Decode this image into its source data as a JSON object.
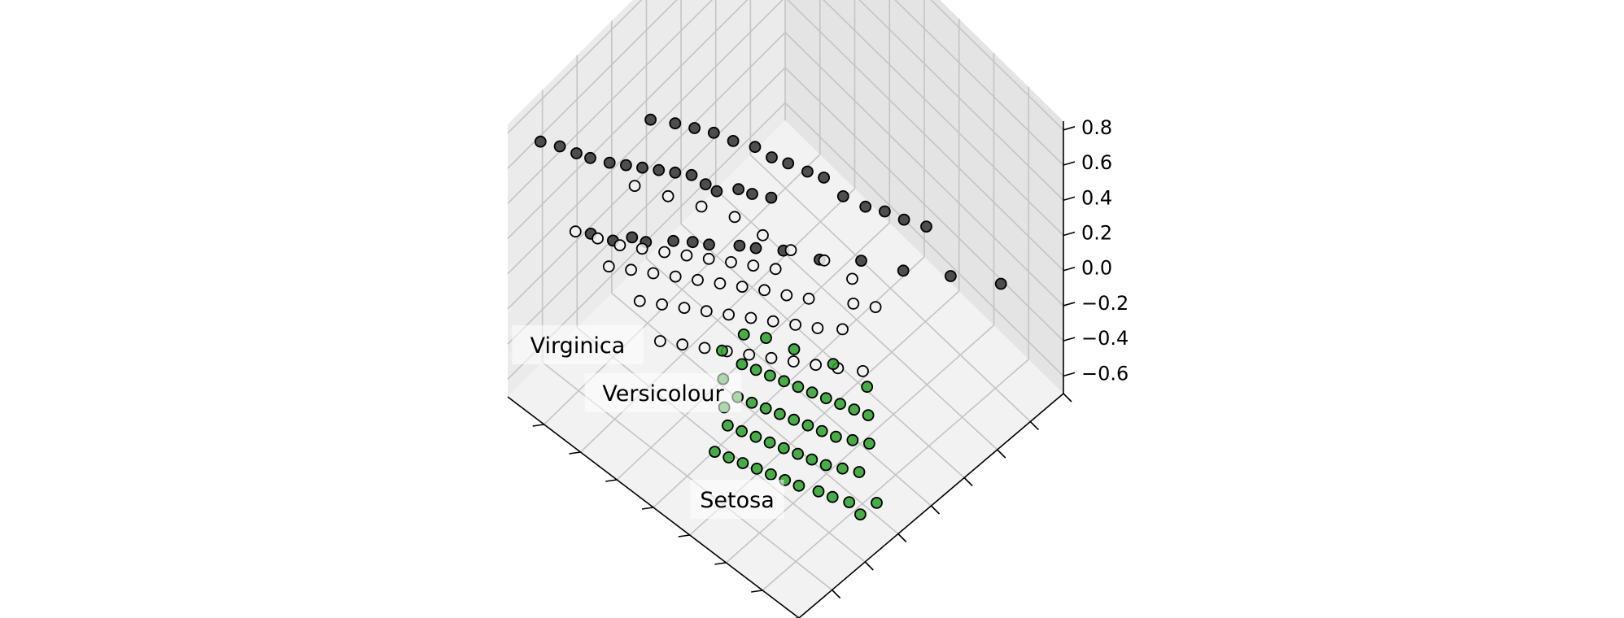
{
  "chart_data": {
    "type": "scatter",
    "projection": "3d",
    "title": "",
    "xlabel": "",
    "ylabel": "",
    "zlabel": "",
    "zlim": [
      -0.7,
      0.85
    ],
    "z_ticks": [
      "0.8",
      "0.6",
      "0.4",
      "0.2",
      "0.0",
      "−0.2",
      "−0.4",
      "−0.6"
    ],
    "x_ticklabels": "hidden",
    "y_ticklabels": "hidden",
    "grid": true,
    "class_labels": [
      "Virginica",
      "Versicolour",
      "Setosa"
    ],
    "series": [
      {
        "name": "Virginica",
        "color": "#333333",
        "points": [
          [
            0.16,
            0.94,
            -0.2
          ],
          [
            0.26,
            0.86,
            -0.18
          ],
          [
            0.35,
            0.78,
            -0.16
          ],
          [
            0.44,
            0.72,
            -0.14
          ],
          [
            0.51,
            0.64,
            -0.12
          ],
          [
            0.58,
            0.58,
            -0.08
          ],
          [
            0.62,
            0.52,
            -0.04
          ],
          [
            0.64,
            0.48,
            0.0
          ],
          [
            0.69,
            0.42,
            0.02
          ],
          [
            0.71,
            0.38,
            0.06
          ],
          [
            0.74,
            0.34,
            0.08
          ],
          [
            0.78,
            0.28,
            0.1
          ],
          [
            0.8,
            0.25,
            0.14
          ],
          [
            0.82,
            0.2,
            0.16
          ],
          [
            0.86,
            0.16,
            0.2
          ],
          [
            0.64,
            0.6,
            0.12
          ],
          [
            0.66,
            0.55,
            0.18
          ],
          [
            0.68,
            0.52,
            0.22
          ],
          [
            0.7,
            0.46,
            0.26
          ],
          [
            0.72,
            0.44,
            0.3
          ],
          [
            0.75,
            0.42,
            0.34
          ],
          [
            0.77,
            0.38,
            0.38
          ],
          [
            0.79,
            0.34,
            0.42
          ],
          [
            0.81,
            0.3,
            0.46
          ],
          [
            0.83,
            0.26,
            0.5
          ],
          [
            0.85,
            0.22,
            0.54
          ],
          [
            0.88,
            0.18,
            0.58
          ],
          [
            0.9,
            0.15,
            0.62
          ],
          [
            0.93,
            0.12,
            0.66
          ],
          [
            0.96,
            0.08,
            0.7
          ],
          [
            0.55,
            0.7,
            0.22
          ],
          [
            0.57,
            0.66,
            0.28
          ],
          [
            0.6,
            0.62,
            0.34
          ],
          [
            0.62,
            0.58,
            0.4
          ],
          [
            0.65,
            0.55,
            0.46
          ],
          [
            0.68,
            0.5,
            0.52
          ],
          [
            0.71,
            0.46,
            0.58
          ],
          [
            0.74,
            0.42,
            0.62
          ],
          [
            0.77,
            0.38,
            0.66
          ],
          [
            0.8,
            0.32,
            0.72
          ],
          [
            0.52,
            0.74,
            0.1
          ],
          [
            0.48,
            0.78,
            0.04
          ],
          [
            0.45,
            0.82,
            0.0
          ],
          [
            0.42,
            0.86,
            -0.06
          ],
          [
            0.38,
            0.9,
            -0.1
          ]
        ]
      },
      {
        "name": "Versicolour",
        "color": "#f2f2f2",
        "points": [
          [
            0.28,
            0.55,
            -0.35
          ],
          [
            0.32,
            0.5,
            -0.32
          ],
          [
            0.36,
            0.46,
            -0.3
          ],
          [
            0.4,
            0.42,
            -0.28
          ],
          [
            0.44,
            0.38,
            -0.26
          ],
          [
            0.48,
            0.34,
            -0.24
          ],
          [
            0.52,
            0.3,
            -0.22
          ],
          [
            0.56,
            0.26,
            -0.2
          ],
          [
            0.6,
            0.22,
            -0.18
          ],
          [
            0.64,
            0.18,
            -0.16
          ],
          [
            0.35,
            0.55,
            -0.2
          ],
          [
            0.39,
            0.5,
            -0.18
          ],
          [
            0.43,
            0.46,
            -0.16
          ],
          [
            0.47,
            0.42,
            -0.14
          ],
          [
            0.51,
            0.38,
            -0.12
          ],
          [
            0.55,
            0.34,
            -0.1
          ],
          [
            0.59,
            0.3,
            -0.08
          ],
          [
            0.63,
            0.26,
            -0.06
          ],
          [
            0.67,
            0.22,
            -0.04
          ],
          [
            0.71,
            0.18,
            -0.02
          ],
          [
            0.42,
            0.5,
            -0.05
          ],
          [
            0.46,
            0.46,
            -0.03
          ],
          [
            0.5,
            0.42,
            0.0
          ],
          [
            0.54,
            0.38,
            0.02
          ],
          [
            0.58,
            0.34,
            0.04
          ],
          [
            0.62,
            0.3,
            0.06
          ],
          [
            0.66,
            0.26,
            0.08
          ],
          [
            0.7,
            0.22,
            0.1
          ],
          [
            0.74,
            0.18,
            0.12
          ],
          [
            0.78,
            0.14,
            0.14
          ],
          [
            0.48,
            0.44,
            0.12
          ],
          [
            0.52,
            0.4,
            0.14
          ],
          [
            0.56,
            0.36,
            0.16
          ],
          [
            0.6,
            0.32,
            0.18
          ],
          [
            0.64,
            0.28,
            0.2
          ],
          [
            0.68,
            0.24,
            0.22
          ],
          [
            0.72,
            0.2,
            0.24
          ],
          [
            0.76,
            0.16,
            0.26
          ],
          [
            0.8,
            0.12,
            0.3
          ],
          [
            0.84,
            0.08,
            0.34
          ],
          [
            0.3,
            0.62,
            -0.1
          ],
          [
            0.34,
            0.58,
            -0.08
          ],
          [
            0.38,
            0.62,
            -0.04
          ],
          [
            0.44,
            0.58,
            0.04
          ],
          [
            0.5,
            0.52,
            0.1
          ],
          [
            0.56,
            0.48,
            0.16
          ],
          [
            0.62,
            0.44,
            0.24
          ],
          [
            0.68,
            0.38,
            0.3
          ],
          [
            0.74,
            0.32,
            0.36
          ],
          [
            0.8,
            0.26,
            0.42
          ]
        ]
      },
      {
        "name": "Setosa",
        "color": "#2ca02c",
        "points": [
          [
            0.1,
            0.3,
            -0.55
          ],
          [
            0.13,
            0.27,
            -0.52
          ],
          [
            0.16,
            0.25,
            -0.5
          ],
          [
            0.2,
            0.22,
            -0.48
          ],
          [
            0.23,
            0.2,
            -0.46
          ],
          [
            0.26,
            0.18,
            -0.44
          ],
          [
            0.29,
            0.16,
            -0.42
          ],
          [
            0.32,
            0.14,
            -0.4
          ],
          [
            0.35,
            0.12,
            -0.38
          ],
          [
            0.38,
            0.1,
            -0.36
          ],
          [
            0.12,
            0.36,
            -0.48
          ],
          [
            0.15,
            0.33,
            -0.46
          ],
          [
            0.18,
            0.3,
            -0.44
          ],
          [
            0.21,
            0.28,
            -0.42
          ],
          [
            0.24,
            0.26,
            -0.4
          ],
          [
            0.27,
            0.24,
            -0.38
          ],
          [
            0.3,
            0.22,
            -0.36
          ],
          [
            0.33,
            0.2,
            -0.34
          ],
          [
            0.36,
            0.18,
            -0.32
          ],
          [
            0.39,
            0.16,
            -0.3
          ],
          [
            0.14,
            0.42,
            -0.42
          ],
          [
            0.17,
            0.39,
            -0.4
          ],
          [
            0.2,
            0.36,
            -0.38
          ],
          [
            0.23,
            0.34,
            -0.36
          ],
          [
            0.26,
            0.32,
            -0.34
          ],
          [
            0.29,
            0.3,
            -0.32
          ],
          [
            0.32,
            0.28,
            -0.3
          ],
          [
            0.35,
            0.26,
            -0.28
          ],
          [
            0.38,
            0.24,
            -0.26
          ],
          [
            0.41,
            0.22,
            -0.24
          ],
          [
            0.18,
            0.46,
            -0.36
          ],
          [
            0.21,
            0.44,
            -0.34
          ],
          [
            0.24,
            0.42,
            -0.32
          ],
          [
            0.27,
            0.4,
            -0.3
          ],
          [
            0.3,
            0.38,
            -0.28
          ],
          [
            0.33,
            0.36,
            -0.26
          ],
          [
            0.36,
            0.34,
            -0.24
          ],
          [
            0.39,
            0.32,
            -0.22
          ],
          [
            0.42,
            0.3,
            -0.2
          ],
          [
            0.45,
            0.28,
            -0.18
          ],
          [
            0.08,
            0.32,
            -0.62
          ],
          [
            0.06,
            0.36,
            -0.58
          ],
          [
            0.22,
            0.5,
            -0.3
          ],
          [
            0.3,
            0.46,
            -0.22
          ],
          [
            0.38,
            0.4,
            -0.16
          ],
          [
            0.44,
            0.36,
            -0.12
          ],
          [
            0.48,
            0.32,
            -0.1
          ],
          [
            0.5,
            0.26,
            -0.14
          ],
          [
            0.46,
            0.22,
            -0.2
          ],
          [
            0.42,
            0.18,
            -0.26
          ]
        ]
      }
    ]
  }
}
